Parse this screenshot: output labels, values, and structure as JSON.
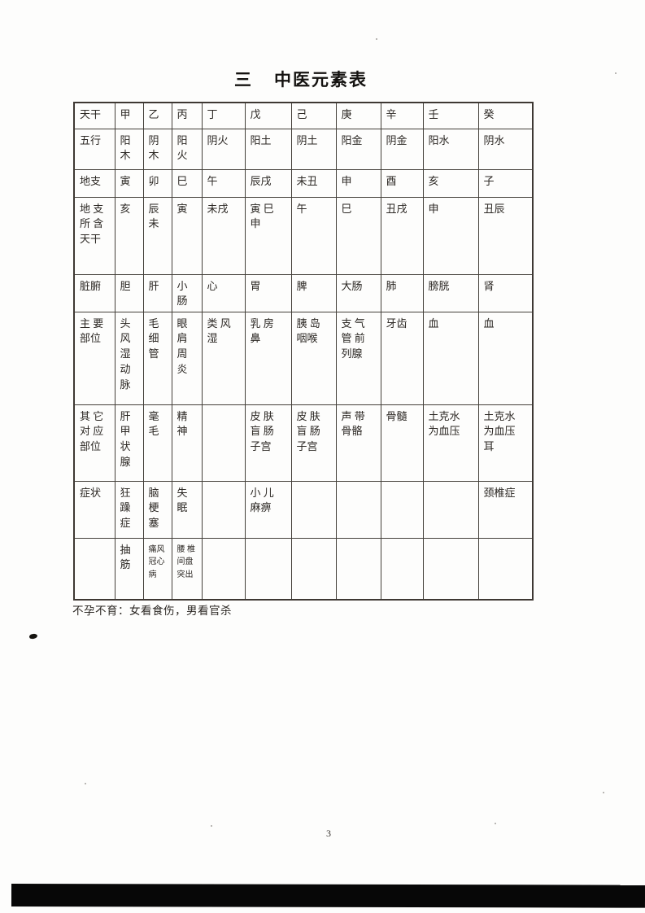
{
  "page": {
    "title_number": "三",
    "title_text": "中医元素表",
    "footer_note": "不孕不育：女看食伤，男看官杀",
    "page_number": "3"
  },
  "table": {
    "description": "中医元素对照表（天干 × 属性）",
    "column_count": 11,
    "rows": [
      [
        "天干",
        "甲",
        "乙",
        "丙",
        "丁",
        "戊",
        "己",
        "庚",
        "辛",
        "壬",
        "癸"
      ],
      [
        "五行",
        "阳\n木",
        "阴\n木",
        "阳\n火",
        "阴火",
        "阳土",
        "阴土",
        "阳金",
        "阴金",
        "阳水",
        "阴水"
      ],
      [
        "地支",
        "寅",
        "卯",
        "巳",
        "午",
        "辰戌",
        "未丑",
        "申",
        "酉",
        "亥",
        "子"
      ],
      [
        "地 支\n所 含\n天干",
        "亥",
        "辰\n未",
        "寅",
        "未戌",
        "寅 巳\n申",
        "午",
        "巳",
        "丑戌",
        "申",
        "丑辰"
      ],
      [
        "脏腑",
        "胆",
        "肝",
        "小\n肠",
        "心",
        "胃",
        "脾",
        "大肠",
        "肺",
        "膀胱",
        "肾"
      ],
      [
        "主 要\n部位",
        "头\n风\n湿\n动\n脉",
        "毛\n细\n管",
        "眼\n肩\n周\n炎",
        "类 风\n湿",
        "乳 房\n鼻",
        "胰 岛\n咽喉",
        "支 气\n管 前\n列腺",
        "牙齿",
        "血",
        "血"
      ],
      [
        "其 它\n对 应\n部位",
        "肝\n甲\n状\n腺",
        "毫\n毛",
        "精\n神",
        "",
        "皮 肤\n盲 肠\n子宫",
        "皮 肤\n盲 肠\n子宫",
        "声 带\n骨骼",
        "骨髓",
        "土克水\n为血压",
        "土克水\n为血压\n耳"
      ],
      [
        "症状",
        "狂\n躁\n症",
        "脑\n梗\n塞",
        "失\n眠",
        "",
        "小 儿\n麻痹",
        "",
        "",
        "",
        "",
        "颈椎症"
      ],
      [
        "",
        "抽\n筋",
        "痛风\n冠心\n病",
        "腰 椎\n间盘\n突出",
        "",
        "",
        "",
        "",
        "",
        "",
        ""
      ]
    ]
  }
}
